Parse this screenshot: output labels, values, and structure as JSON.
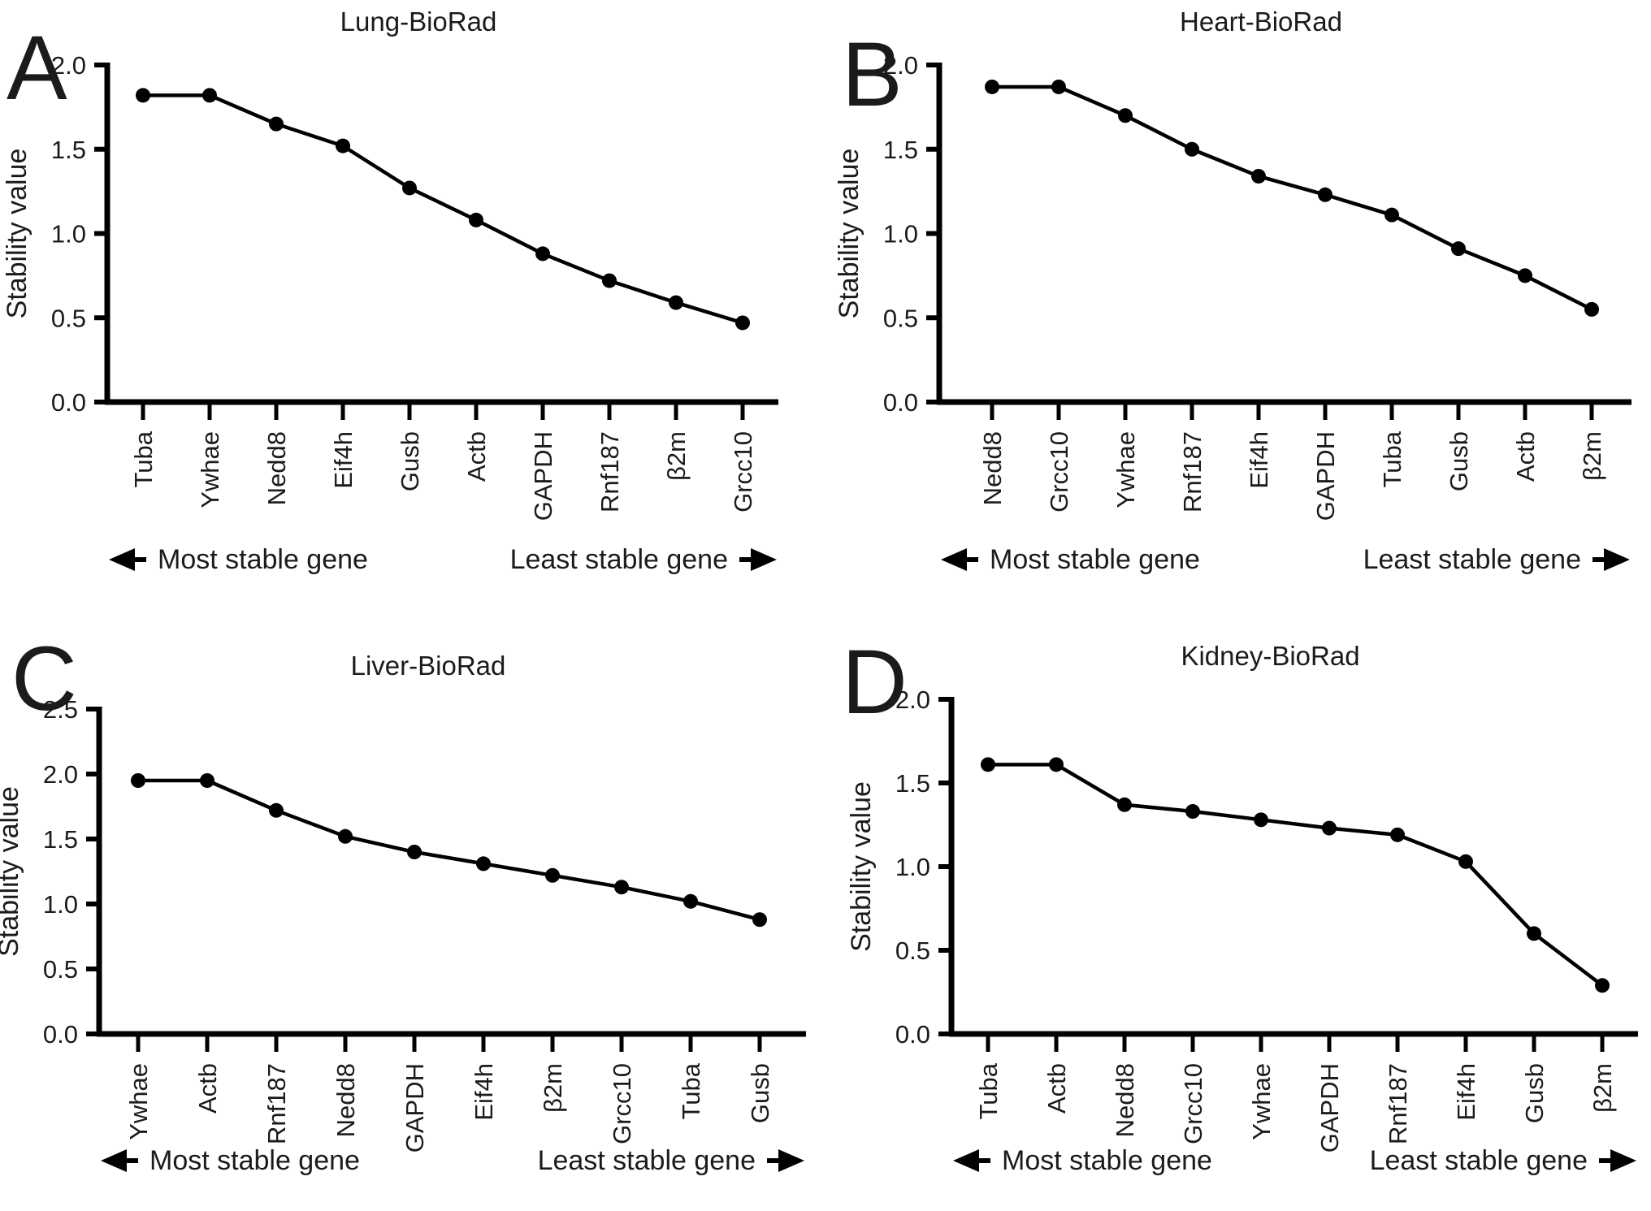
{
  "figure": {
    "description": "Gene expression stability ranking (geNorm-style) in four mouse tissues, BioRad reagent",
    "text_color": "#1b1b1b",
    "line_color": "#000000",
    "background": "#ffffff"
  },
  "chart_data": [
    {
      "panel": "A",
      "type": "line",
      "title": "Lung-BioRad",
      "ylabel": "Stability value",
      "ylim": [
        0.0,
        2.0
      ],
      "yticks": [
        2.0,
        1.5,
        1.0,
        0.5,
        0.0
      ],
      "ytick_labels": [
        "2.0",
        "1.5",
        "1.0",
        "0.5",
        "0.0"
      ],
      "categories": [
        "Tuba",
        "Ywhae",
        "Nedd8",
        "Eif4h",
        "Gusb",
        "Actb",
        "GAPDH",
        "Rnf187",
        "β2m",
        "Grcc10"
      ],
      "values": [
        1.82,
        1.82,
        1.65,
        1.52,
        1.27,
        1.08,
        0.88,
        0.72,
        0.59,
        0.47
      ],
      "x_annotation_left": "Most stable gene",
      "x_annotation_right": "Least stable gene",
      "grid": false,
      "legend": "none",
      "marker": "filled-circle"
    },
    {
      "panel": "B",
      "type": "line",
      "title": "Heart-BioRad",
      "ylabel": "Stability value",
      "ylim": [
        0.0,
        2.0
      ],
      "yticks": [
        2.0,
        1.5,
        1.0,
        0.5,
        0.0
      ],
      "ytick_labels": [
        "2.0",
        "1.5",
        "1.0",
        "0.5",
        "0.0"
      ],
      "categories": [
        "Nedd8",
        "Grcc10",
        "Ywhae",
        "Rnf187",
        "Eif4h",
        "GAPDH",
        "Tuba",
        "Gusb",
        "Actb",
        "β2m"
      ],
      "values": [
        1.87,
        1.87,
        1.7,
        1.5,
        1.34,
        1.23,
        1.11,
        0.91,
        0.75,
        0.55
      ],
      "x_annotation_left": "Most stable gene",
      "x_annotation_right": "Least stable gene",
      "grid": false,
      "legend": "none",
      "marker": "filled-circle"
    },
    {
      "panel": "C",
      "type": "line",
      "title": "Liver-BioRad",
      "ylabel": "Stability value",
      "ylim": [
        0.0,
        2.5
      ],
      "yticks": [
        2.5,
        2.0,
        1.5,
        1.0,
        0.5,
        0.0
      ],
      "ytick_labels": [
        "2.5",
        "2.0",
        "1.5",
        "1.0",
        "0.5",
        "0.0"
      ],
      "categories": [
        "Ywhae",
        "Actb",
        "Rnf187",
        "Nedd8",
        "GAPDH",
        "Eif4h",
        "β2m",
        "Grcc10",
        "Tuba",
        "Gusb"
      ],
      "values": [
        1.95,
        1.95,
        1.72,
        1.52,
        1.4,
        1.31,
        1.22,
        1.13,
        1.02,
        0.88
      ],
      "x_annotation_left": "Most stable gene",
      "x_annotation_right": "Least stable gene",
      "grid": false,
      "legend": "none",
      "marker": "filled-circle"
    },
    {
      "panel": "D",
      "type": "line",
      "title": "Kidney-BioRad",
      "ylabel": "Stability value",
      "ylim": [
        0.0,
        2.0
      ],
      "yticks": [
        2.0,
        1.5,
        1.0,
        0.5,
        0.0
      ],
      "ytick_labels": [
        "2.0",
        "1.5",
        "1.0",
        "0.5",
        "0.0"
      ],
      "categories": [
        "Tuba",
        "Actb",
        "Nedd8",
        "Grcc10",
        "Ywhae",
        "GAPDH",
        "Rnf187",
        "Eif4h",
        "Gusb",
        "β2m"
      ],
      "values": [
        1.61,
        1.61,
        1.37,
        1.33,
        1.28,
        1.23,
        1.19,
        1.03,
        0.6,
        0.29
      ],
      "x_annotation_left": "Most stable gene",
      "x_annotation_right": "Least stable gene",
      "grid": false,
      "legend": "none",
      "marker": "filled-circle"
    }
  ]
}
